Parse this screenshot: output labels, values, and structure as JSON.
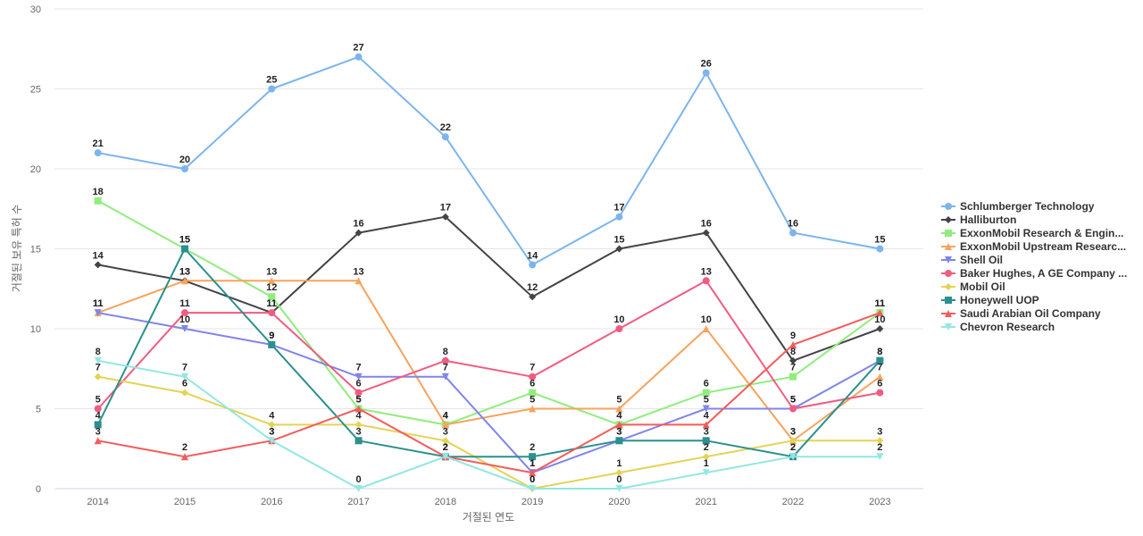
{
  "chart_data": {
    "type": "line",
    "xlabel": "거절된 연도",
    "ylabel": "거절된 보유 특허 수",
    "ylim": [
      0,
      30
    ],
    "yticks": [
      0,
      5,
      10,
      15,
      20,
      25,
      30
    ],
    "grid": "horizontal",
    "legend": "right",
    "categories": [
      "2014",
      "2015",
      "2016",
      "2017",
      "2018",
      "2019",
      "2020",
      "2021",
      "2022",
      "2023"
    ],
    "series": [
      {
        "name": "Schlumberger Technology",
        "color": "#7cb5ec",
        "marker": "circle",
        "values": [
          21,
          20,
          25,
          27,
          22,
          14,
          17,
          26,
          16,
          15
        ]
      },
      {
        "name": "Halliburton",
        "color": "#434348",
        "marker": "diamond",
        "values": [
          14,
          13,
          11,
          16,
          17,
          12,
          15,
          16,
          8,
          10
        ]
      },
      {
        "name": "ExxonMobil Research & Engin...",
        "color": "#90ed7d",
        "marker": "square",
        "values": [
          18,
          15,
          12,
          5,
          4,
          6,
          4,
          6,
          7,
          11
        ]
      },
      {
        "name": "ExxonMobil Upstream Researc...",
        "color": "#f7a35c",
        "marker": "triangle",
        "values": [
          11,
          13,
          13,
          13,
          4,
          5,
          5,
          10,
          3,
          7
        ]
      },
      {
        "name": "Shell Oil",
        "color": "#8085e9",
        "marker": "triangle-down",
        "values": [
          11,
          10,
          9,
          7,
          7,
          1,
          3,
          5,
          5,
          8
        ]
      },
      {
        "name": "Baker Hughes, A GE Company ...",
        "color": "#f15c80",
        "marker": "circle",
        "values": [
          5,
          11,
          11,
          6,
          8,
          7,
          10,
          13,
          5,
          6
        ]
      },
      {
        "name": "Mobil Oil",
        "color": "#e4d354",
        "marker": "diamond",
        "values": [
          7,
          6,
          4,
          4,
          3,
          0,
          1,
          2,
          3,
          3
        ]
      },
      {
        "name": "Honeywell UOP",
        "color": "#2b908f",
        "marker": "square",
        "values": [
          4,
          15,
          9,
          3,
          2,
          2,
          3,
          3,
          2,
          8
        ]
      },
      {
        "name": "Saudi Arabian Oil Company",
        "color": "#f45b5b",
        "marker": "triangle",
        "values": [
          3,
          2,
          3,
          5,
          2,
          1,
          4,
          4,
          9,
          11
        ]
      },
      {
        "name": "Chevron Research",
        "color": "#91e8e1",
        "marker": "triangle-down",
        "values": [
          8,
          7,
          3,
          0,
          2,
          0,
          0,
          1,
          2,
          2
        ]
      }
    ]
  }
}
